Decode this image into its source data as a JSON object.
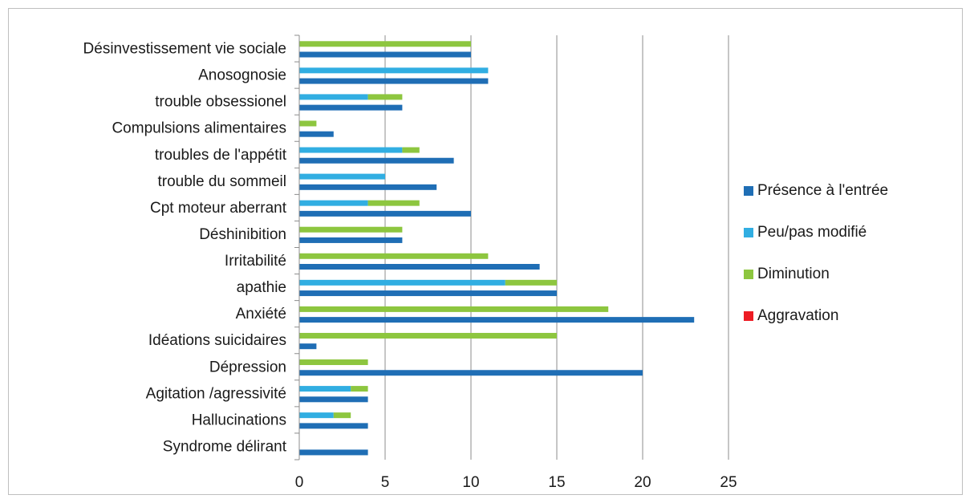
{
  "chart_data": {
    "type": "bar",
    "orientation": "horizontal",
    "categories": [
      "Désinvestissement vie sociale",
      "Anosognosie",
      "trouble obsessionel",
      "Compulsions alimentaires",
      "troubles de l'appétit ",
      "trouble du sommeil",
      "Cpt moteur aberrant",
      "Déshinibition",
      "Irritabilité",
      "apathie",
      "Anxiété ",
      "Idéations suicidaires",
      "Dépression ",
      "Agitation /agressivité",
      "Hallucinations ",
      "Syndrome délirant"
    ],
    "series": [
      {
        "name": "Présence à l'entrée",
        "color": "#1f6eb5",
        "values": [
          10,
          11,
          6,
          2,
          9,
          8,
          10,
          6,
          14,
          15,
          23,
          1,
          20,
          4,
          4,
          4
        ]
      },
      {
        "name": "Peu/pas modifié",
        "color": "#31aee2",
        "values": [
          0,
          11,
          4,
          0,
          6,
          5,
          4,
          0,
          0,
          12,
          0,
          0,
          0,
          3,
          2,
          0
        ]
      },
      {
        "name": "Diminution",
        "color": "#8dc63f",
        "values": [
          10,
          0,
          2,
          1,
          1,
          0,
          3,
          6,
          11,
          3,
          18,
          15,
          4,
          1,
          1,
          0
        ]
      },
      {
        "name": "Aggravation",
        "color": "#ed1c24",
        "values": [
          0,
          0,
          0,
          0,
          0,
          0,
          0,
          0,
          0,
          0,
          0,
          0,
          0,
          0,
          0,
          0
        ]
      }
    ],
    "xlim": [
      0,
      25
    ],
    "xticks": [
      0,
      5,
      10,
      15,
      20,
      25
    ],
    "grid": true,
    "legend_position": "right",
    "title": "",
    "xlabel": "",
    "ylabel": ""
  }
}
